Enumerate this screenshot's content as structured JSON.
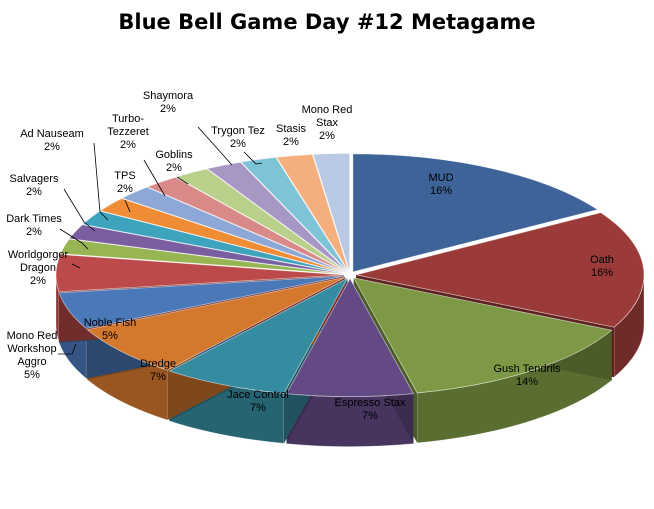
{
  "chart_data": {
    "type": "pie",
    "style": "3d-exploded",
    "title": "Blue Bell Game Day #12 Metagame",
    "legend": "none",
    "slices": [
      {
        "label": "MUD",
        "value_label": "16%",
        "value": 16,
        "color": "#3D6399"
      },
      {
        "label": "Oath",
        "value_label": "16%",
        "value": 16,
        "color": "#9B3B39"
      },
      {
        "label": "Gush Tendrils",
        "value_label": "14%",
        "value": 14,
        "color": "#7E9945"
      },
      {
        "label": "Espresso Stax",
        "value_label": "7%",
        "value": 7,
        "color": "#634A85"
      },
      {
        "label": "Jace Control",
        "value_label": "7%",
        "value": 7,
        "color": "#358B9F"
      },
      {
        "label": "Dredge",
        "value_label": "7%",
        "value": 7,
        "color": "#D4782E"
      },
      {
        "label": "Noble Fish",
        "value_label": "5%",
        "value": 5,
        "color": "#4A78B8"
      },
      {
        "label": "Mono Red Workshop Aggro",
        "value_label": "5%",
        "value": 5,
        "color": "#BC4A4A"
      },
      {
        "label": "Worldgorger Dragon",
        "value_label": "2%",
        "value": 2,
        "color": "#97B552"
      },
      {
        "label": "Dark Times",
        "value_label": "2%",
        "value": 2,
        "color": "#7A5FA0"
      },
      {
        "label": "Salvagers",
        "value_label": "2%",
        "value": 2,
        "color": "#3EA3BD"
      },
      {
        "label": "Ad Nauseam",
        "value_label": "2%",
        "value": 2,
        "color": "#F08C35"
      },
      {
        "label": "TPS",
        "value_label": "2%",
        "value": 2,
        "color": "#8DA7D6"
      },
      {
        "label": "Turbo-Tezzeret",
        "value_label": "2%",
        "value": 2,
        "color": "#D98A88"
      },
      {
        "label": "Goblins",
        "value_label": "2%",
        "value": 2,
        "color": "#B8D08A"
      },
      {
        "label": "Shaymora",
        "value_label": "2%",
        "value": 2,
        "color": "#A697C4"
      },
      {
        "label": "Trygon Tez",
        "value_label": "2%",
        "value": 2,
        "color": "#7EC3D6"
      },
      {
        "label": "Stasis",
        "value_label": "2%",
        "value": 2,
        "color": "#F5AE7E"
      },
      {
        "label": "Mono Red Stax",
        "value_label": "2%",
        "value": 2,
        "color": "#B9C9E4"
      }
    ]
  }
}
